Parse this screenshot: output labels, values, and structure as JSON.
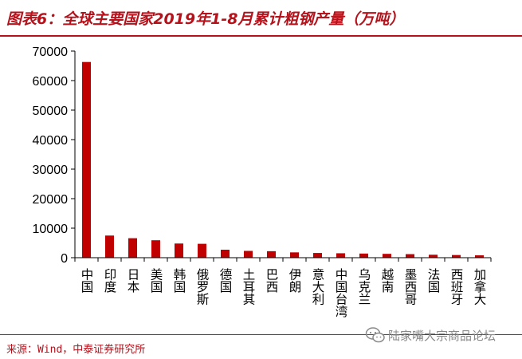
{
  "header": {
    "title": "图表6：全球主要国家2019年1-8月累计粗钢产量（万吨）"
  },
  "footer": {
    "source": "来源：Wind，中泰证券研究所"
  },
  "watermark": {
    "text": "陆家嘴大宗商品论坛",
    "icon": "wechat-icon"
  },
  "colors": {
    "bar": "#c00000",
    "accent": "#b5121b",
    "axis": "#000000"
  },
  "chart_data": {
    "type": "bar",
    "categories": [
      "中国",
      "印度",
      "日本",
      "美国",
      "韩国",
      "俄罗斯",
      "德国",
      "土耳其",
      "巴西",
      "伊朗",
      "意大利",
      "中国台湾",
      "乌克兰",
      "越南",
      "墨西哥",
      "法国",
      "西班牙",
      "加拿大"
    ],
    "values": [
      66300,
      7500,
      6600,
      5900,
      4800,
      4700,
      2700,
      2300,
      2200,
      1800,
      1600,
      1500,
      1400,
      1300,
      1200,
      1000,
      900,
      800
    ],
    "yticks": [
      "0",
      "10000",
      "20000",
      "30000",
      "40000",
      "50000",
      "60000",
      "70000"
    ],
    "ylim": [
      0,
      70000
    ],
    "xlabel": "",
    "ylabel": "",
    "grid": false,
    "legend": "none"
  }
}
